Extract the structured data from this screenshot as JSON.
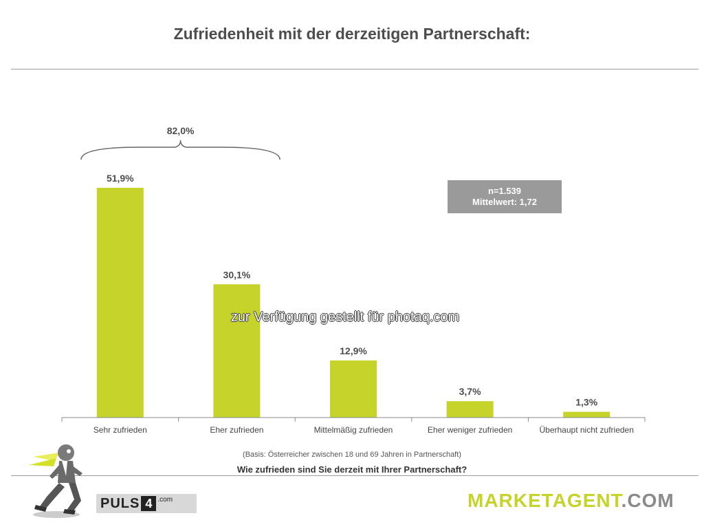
{
  "title": "Zufriedenheit mit der derzeitigen Partnerschaft:",
  "stats": {
    "n": "n=1.539",
    "mean": "Mittelwert: 1,72"
  },
  "watermark": "zur Verfügung gestellt für photaq.com",
  "basis": "(Basis: Österreicher zwischen 18 und 69 Jahren in Partnerschaft)",
  "question": "Wie zufrieden sind Sie derzeit mit Ihrer Partnerschaft?",
  "logos": {
    "puls_text": "PULS",
    "puls_number": "4",
    "puls_suffix": ".com",
    "marketagent_main": "MARKETAGENT",
    "marketagent_suffix": ".COM"
  },
  "colors": {
    "bar": "#c6d32a",
    "title": "#4d4d4d",
    "box": "#9a9a9a"
  },
  "chart_data": {
    "type": "bar",
    "categories": [
      "Sehr zufrieden",
      "Eher zufrieden",
      "Mittelmäßig zufrieden",
      "Eher weniger zufrieden",
      "Überhaupt nicht zufrieden"
    ],
    "values": [
      51.9,
      30.1,
      12.9,
      3.7,
      1.3
    ],
    "value_labels": [
      "51,9%",
      "30,1%",
      "12,9%",
      "3,7%",
      "1,3%"
    ],
    "annotation": {
      "text": "82,0%",
      "spans_categories": [
        0,
        1
      ]
    },
    "ylim": [
      0,
      51.9
    ],
    "grid": false,
    "legend": "none"
  }
}
